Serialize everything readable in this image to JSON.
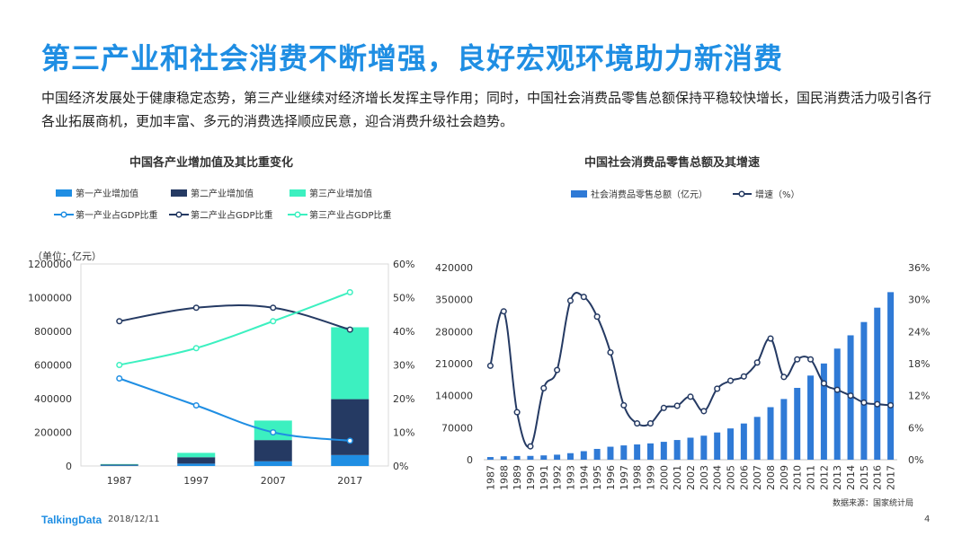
{
  "header": {
    "title": "第三产业和社会消费不断增强，良好宏观环境助力新消费",
    "intro": "中国经济发展处于健康稳定态势，第三产业继续对经济增长发挥主导作用；同时，中国社会消费品零售总额保持平稳较快增长，国民消费活力吸引各行各业拓展商机，更加丰富、多元的消费选择顺应民意，迎合消费升级社会趋势。"
  },
  "footer": {
    "brand": "TalkingData",
    "date": "2018/12/11",
    "page": "4",
    "source": "数据来源：国家统计局"
  },
  "colors": {
    "primary": "#1f8ee3",
    "secondary": "#253a63",
    "tertiary": "#3cf0c0",
    "retail_bar": "#2f7ad6",
    "growth_line": "#253a63"
  },
  "chart_data": [
    {
      "type": "bar",
      "title": "中国各产业增加值及其比重变化",
      "unit_label": "（单位：亿元）",
      "categories": [
        "1987",
        "1997",
        "2007",
        "2017"
      ],
      "stacked": true,
      "series": [
        {
          "name": "第一产业增加值",
          "values": [
            3200,
            14000,
            27800,
            65000
          ],
          "color": "#1f8ee3"
        },
        {
          "name": "第二产业增加值",
          "values": [
            5300,
            38000,
            126000,
            332000
          ],
          "color": "#253a63"
        },
        {
          "name": "第三产业增加值",
          "values": [
            3000,
            26000,
            116000,
            427000
          ],
          "color": "#3cf0c0"
        }
      ],
      "line_series": [
        {
          "name": "第一产业占GDP比重",
          "values": [
            26,
            18,
            10,
            7.5
          ],
          "color": "#1f8ee3"
        },
        {
          "name": "第二产业占GDP比重",
          "values": [
            43,
            47,
            47,
            40.5
          ],
          "color": "#253a63"
        },
        {
          "name": "第三产业占GDP比重",
          "values": [
            30,
            35,
            43,
            51.6
          ],
          "color": "#3cf0c0"
        }
      ],
      "y_ticks": [
        "0",
        "200000",
        "400000",
        "600000",
        "800000",
        "1000000",
        "1200000"
      ],
      "ylim": [
        0,
        1200000
      ],
      "y2_ticks": [
        "0%",
        "10%",
        "20%",
        "30%",
        "40%",
        "50%",
        "60%"
      ],
      "y2lim": [
        0,
        60
      ],
      "legend_position": "top"
    },
    {
      "type": "bar",
      "title": "中国社会消费品零售总额及其增速",
      "x": [
        "1987",
        "1988",
        "1989",
        "1990",
        "1991",
        "1992",
        "1993",
        "1994",
        "1995",
        "1996",
        "1997",
        "1998",
        "1999",
        "2000",
        "2001",
        "2002",
        "2003",
        "2004",
        "2005",
        "2006",
        "2007",
        "2008",
        "2009",
        "2010",
        "2011",
        "2012",
        "2013",
        "2014",
        "2015",
        "2016",
        "2017"
      ],
      "series": [
        {
          "name": "社会消费品零售总额（亿元）",
          "values": [
            5820,
            7440,
            8101,
            8300,
            9416,
            10994,
            14270,
            18623,
            23614,
            28360,
            31253,
            33378,
            35648,
            39106,
            43055,
            48136,
            52516,
            59501,
            68353,
            79145,
            93572,
            114830,
            132678,
            156998,
            183919,
            210307,
            242843,
            271896,
            300931,
            332316,
            366262
          ],
          "color": "#2f7ad6"
        }
      ],
      "line_series": [
        {
          "name": "增速（%）",
          "values": [
            17.6,
            27.8,
            8.9,
            2.5,
            13.4,
            16.8,
            29.8,
            30.5,
            26.8,
            20.1,
            10.2,
            6.8,
            6.8,
            9.7,
            10.1,
            11.8,
            9.1,
            13.3,
            14.8,
            15.6,
            18.2,
            22.7,
            15.5,
            18.8,
            18.8,
            14.3,
            13.1,
            12.0,
            10.7,
            10.4,
            10.2
          ],
          "color": "#253a63"
        }
      ],
      "y_ticks": [
        "0",
        "70000",
        "140000",
        "210000",
        "280000",
        "350000",
        "420000"
      ],
      "ylim": [
        0,
        420000
      ],
      "y2_ticks": [
        "0%",
        "6%",
        "12%",
        "18%",
        "24%",
        "30%",
        "36%"
      ],
      "y2lim": [
        0,
        36
      ],
      "legend_position": "top"
    }
  ]
}
